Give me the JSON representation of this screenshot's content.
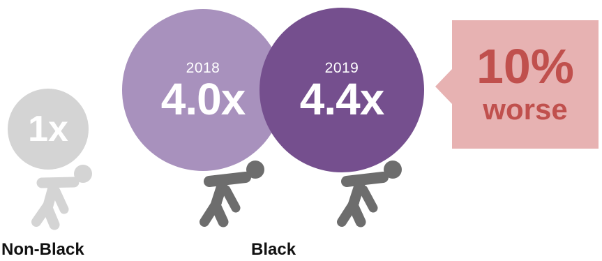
{
  "groups": {
    "non_black": {
      "label": "Non-Black",
      "multiplier": "1x"
    },
    "black": {
      "label": "Black"
    }
  },
  "years": [
    {
      "year": "2018",
      "multiplier": "4.0x"
    },
    {
      "year": "2019",
      "multiplier": "4.4x"
    }
  ],
  "callout": {
    "percent": "10%",
    "word": "worse"
  },
  "colors": {
    "ball_2018": "#a891bd",
    "ball_2019": "#754f8e",
    "ball_non_black": "#d4d4d4",
    "figure_non_black": "#d4d4d4",
    "figure_black": "#6d6d6d",
    "callout_bg": "#e7b2b2",
    "callout_text": "#c0504d"
  },
  "icons": [
    "person-pushing-icon"
  ]
}
